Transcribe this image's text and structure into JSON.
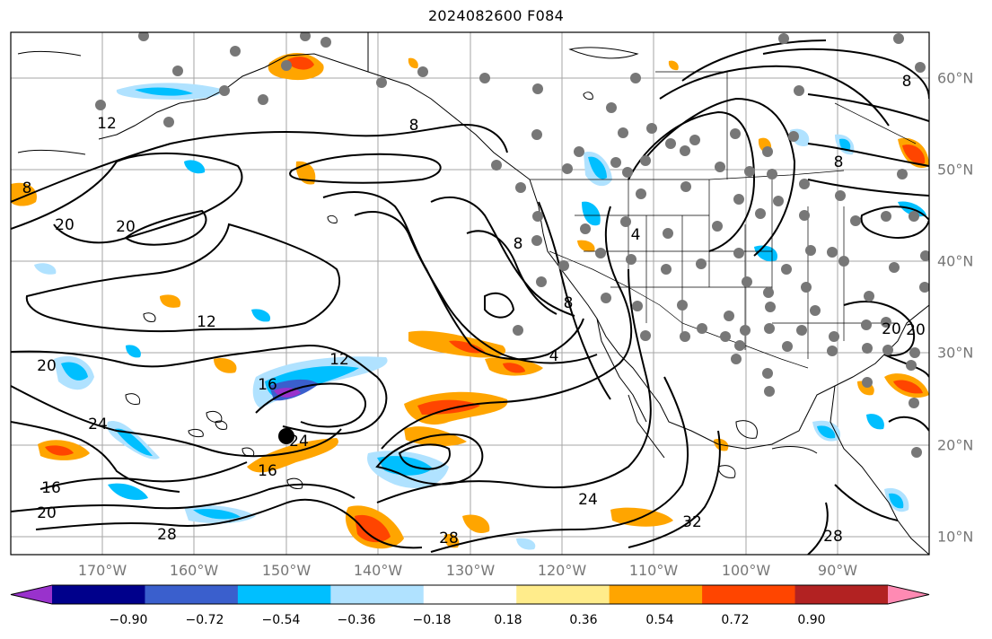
{
  "title": "2024082600 F084",
  "longitude_labels": [
    "170°W",
    "160°W",
    "150°W",
    "140°W",
    "130°W",
    "120°W",
    "110°W",
    "100°W",
    "90°W"
  ],
  "latitude_labels": [
    "60°N",
    "50°N",
    "40°N",
    "30°N",
    "20°N",
    "10°N"
  ],
  "contour_labels": [
    "12",
    "8",
    "8",
    "8",
    "20",
    "20",
    "20",
    "12",
    "12",
    "4",
    "4",
    "8",
    "8",
    "16",
    "20",
    "24",
    "24",
    "16",
    "16",
    "20",
    "28",
    "28",
    "24",
    "32",
    "28",
    "20",
    "8"
  ],
  "colorbar": {
    "ticks": [
      "−0.90",
      "−0.72",
      "−0.54",
      "−0.36",
      "−0.18",
      "0.18",
      "0.36",
      "0.54",
      "0.72",
      "0.90"
    ],
    "colors": [
      "#9932cc",
      "#00008b",
      "#3a5fcd",
      "#00bfff",
      "#b0e2ff",
      "#ffffff",
      "#ffec8b",
      "#ffa500",
      "#ff4500",
      "#b22222",
      "#ff8ab3"
    ]
  }
}
